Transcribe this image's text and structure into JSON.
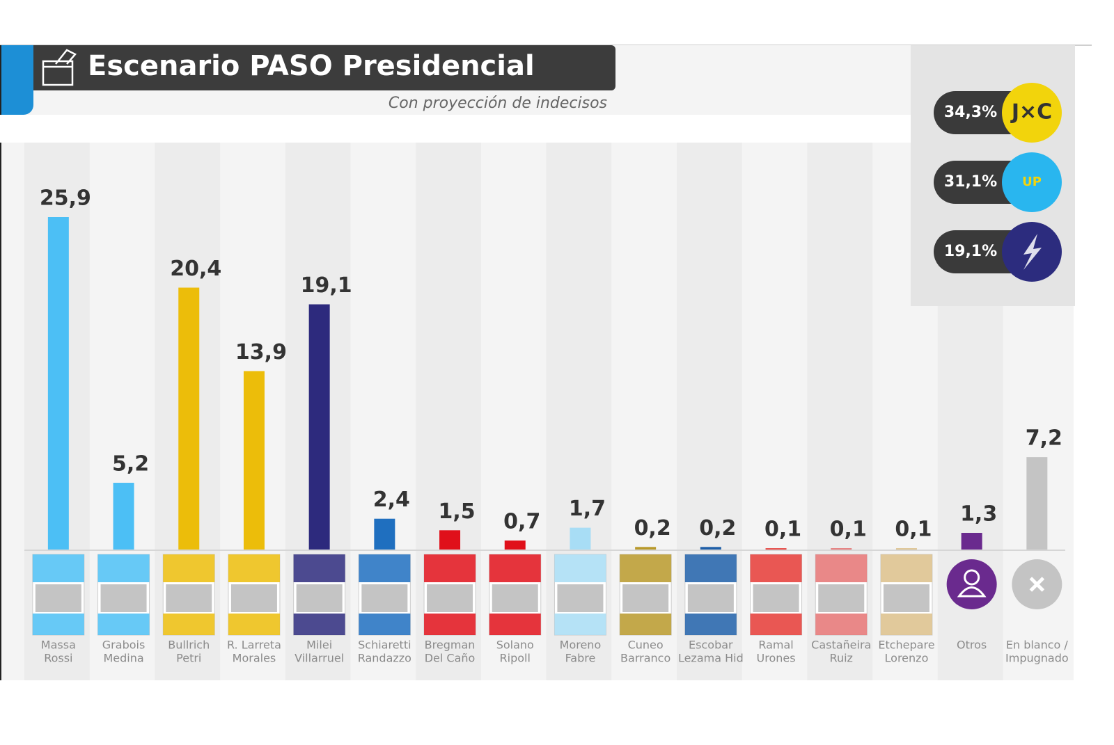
{
  "header": {
    "title": "Escenario PASO Presidencial",
    "subtitle": "Con proyección de indecisos"
  },
  "party_totals": [
    {
      "label": "34,3%",
      "logo": "J×C",
      "color": "#f2d40c"
    },
    {
      "label": "31,1%",
      "logo": "UP",
      "color": "#29b6ef"
    },
    {
      "label": "19,1%",
      "color": "#2c2c7e"
    }
  ],
  "chart_data": {
    "type": "bar",
    "categories": [
      [
        "Massa",
        "Rossi"
      ],
      [
        "Grabois",
        "Medina"
      ],
      [
        "Bullrich",
        "Petri"
      ],
      [
        "R. Larreta",
        "Morales"
      ],
      [
        "Milei",
        "Villarruel"
      ],
      [
        "Schiaretti",
        "Randazzo"
      ],
      [
        "Bregman",
        "Del Caño"
      ],
      [
        "Solano",
        "Ripoll"
      ],
      [
        "Moreno",
        "Fabre"
      ],
      [
        "Cuneo",
        "Barranco"
      ],
      [
        "Escobar",
        "Lezama Hid"
      ],
      [
        "Ramal",
        "Urones"
      ],
      [
        "Castañeira",
        "Ruiz"
      ],
      [
        "Etchepare",
        "Lorenzo"
      ],
      [
        "Otros"
      ],
      [
        "En blanco /",
        "Impugnado"
      ]
    ],
    "values": [
      25.9,
      5.2,
      20.4,
      13.9,
      19.1,
      2.4,
      1.5,
      0.7,
      1.7,
      0.2,
      0.2,
      0.1,
      0.1,
      0.1,
      1.3,
      7.2
    ],
    "value_labels": [
      "25,9",
      "5,2",
      "20,4",
      "13,9",
      "19,1",
      "2,4",
      "1,5",
      "0,7",
      "1,7",
      "0,2",
      "0,2",
      "0,1",
      "0,1",
      "0,1",
      "1,3",
      "7,2"
    ],
    "colors": [
      "#4cbff5",
      "#4cbff5",
      "#ecbd0a",
      "#ecbd0a",
      "#2d2a7d",
      "#1f6fbf",
      "#e0101a",
      "#e0101a",
      "#a8ddf5",
      "#b8992a",
      "#1f5fa8",
      "#e53935",
      "#e57373",
      "#dcc08a",
      "#6a2a8e",
      "#c4c4c4"
    ]
  }
}
